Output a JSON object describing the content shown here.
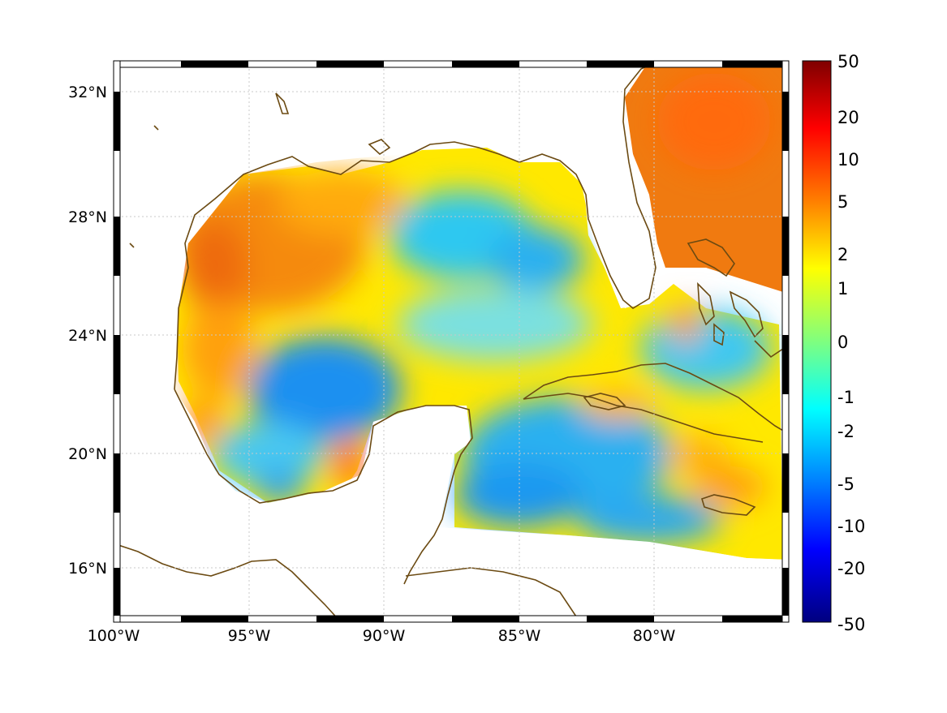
{
  "map": {
    "x_ticks": [
      "100°W",
      "95°W",
      "90°W",
      "85°W",
      "80°W"
    ],
    "y_ticks": [
      "32°N",
      "28°N",
      "24°N",
      "20°N",
      "16°N"
    ]
  },
  "colorbar": {
    "labels": [
      "50",
      "20",
      "10",
      "5",
      "2",
      "1",
      "0",
      "-1",
      "-2",
      "-5",
      "-10",
      "-20",
      "-50"
    ],
    "colors": [
      "#7f0000",
      "#ff0000",
      "#ff7f00",
      "#ffff00",
      "#7fff7f",
      "#00ffff",
      "#007fff",
      "#0000ff",
      "#00007f"
    ]
  },
  "colors": {
    "coast": "#6b4a12",
    "warm": "#f28a10",
    "neutral": "#ffef00",
    "cool": "#38bff5",
    "cold": "#1a7ff0"
  }
}
